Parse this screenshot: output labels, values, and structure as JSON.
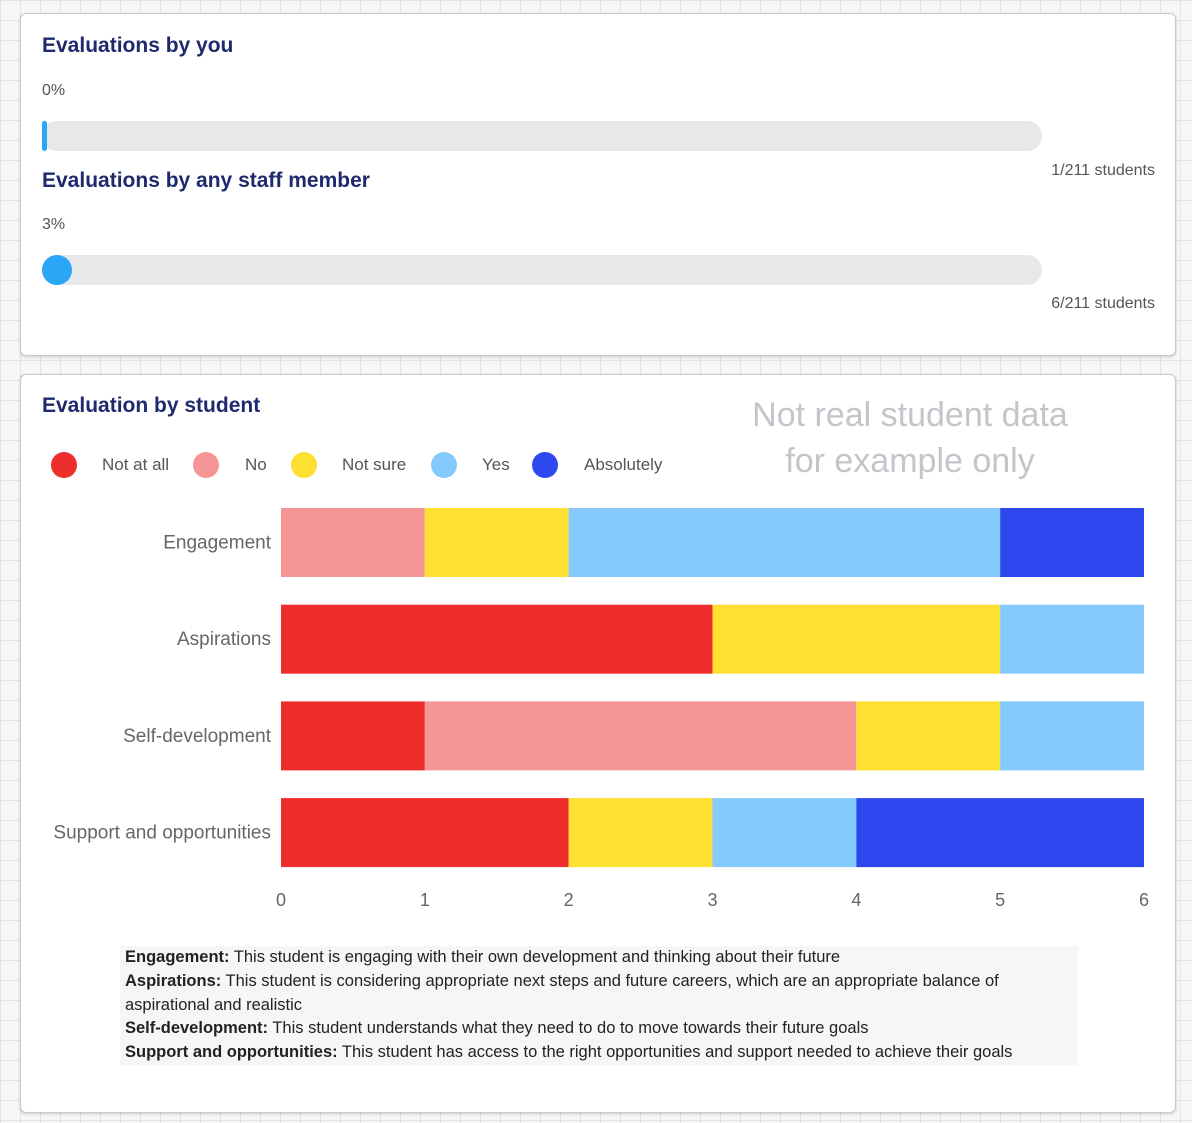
{
  "progress": {
    "by_you": {
      "title": "Evaluations by you",
      "percent_label": "0%",
      "fraction": 0.004739,
      "count_label": "1/211 students"
    },
    "by_staff": {
      "title": "Evaluations by any staff member",
      "percent_label": "3%",
      "fraction": 0.028436,
      "count_label": "6/211 students"
    }
  },
  "evaluation": {
    "title": "Evaluation by student",
    "watermark": [
      "Not real student data",
      "for example only"
    ],
    "legend": [
      {
        "label": "Not at all",
        "color": "#ee2d2d"
      },
      {
        "label": "No",
        "color": "#f69595"
      },
      {
        "label": "Not sure",
        "color": "#fde031"
      },
      {
        "label": "Yes",
        "color": "#85cafd"
      },
      {
        "label": "Absolutely",
        "color": "#2d48ee"
      }
    ],
    "definitions": [
      {
        "term": "Engagement:",
        "text": " This student is engaging with their own development and thinking about their future"
      },
      {
        "term": "Aspirations:",
        "text": " This student is considering appropriate next steps and future careers, which are an appropriate balance of aspirational and realistic"
      },
      {
        "term": "Self-development:",
        "text": " This student understands what they need to do to move towards their future goals"
      },
      {
        "term": "Support and opportunities:",
        "text": " This student has access to the right opportunities and support needed to achieve their goals"
      }
    ]
  },
  "chart_data": {
    "type": "bar",
    "orientation": "horizontal",
    "stacked": true,
    "categories": [
      "Engagement",
      "Aspirations",
      "Self-development",
      "Support and opportunities"
    ],
    "series": [
      {
        "name": "Not at all",
        "color": "#ee2d2d",
        "values": [
          0,
          3,
          1,
          2
        ]
      },
      {
        "name": "No",
        "color": "#f69595",
        "values": [
          1,
          0,
          3,
          0
        ]
      },
      {
        "name": "Not sure",
        "color": "#fde031",
        "values": [
          1,
          2,
          1,
          1
        ]
      },
      {
        "name": "Yes",
        "color": "#85cafd",
        "values": [
          3,
          1,
          1,
          1
        ]
      },
      {
        "name": "Absolutely",
        "color": "#2d48ee",
        "values": [
          1,
          0,
          0,
          2
        ]
      }
    ],
    "xlim": [
      0,
      6
    ],
    "xticks": [
      "0",
      "1",
      "2",
      "3",
      "4",
      "5",
      "6"
    ],
    "title": "Evaluation by student",
    "xlabel": "",
    "ylabel": "",
    "grid": false,
    "legend": "top-left"
  }
}
